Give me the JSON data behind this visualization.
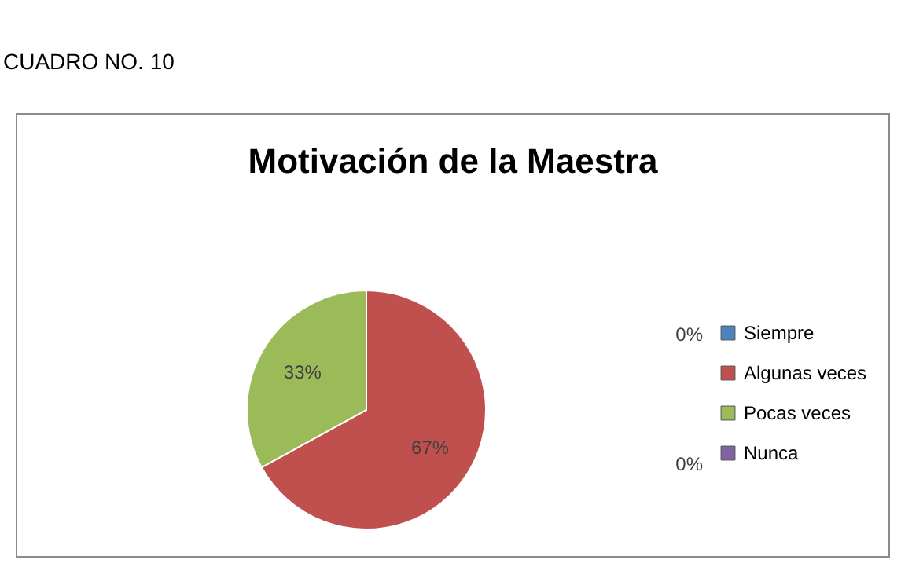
{
  "chart_data": {
    "type": "pie",
    "title": "Motivación de la Maestra",
    "annotations": [
      "CUADRO NO. 10"
    ],
    "categories": [
      "Siempre",
      "Algunas veces",
      "Pocas veces",
      "Nunca"
    ],
    "values": [
      0,
      67,
      33,
      0
    ],
    "colors": [
      "#4f81bd",
      "#c0504d",
      "#9bbb59",
      "#8064a2"
    ],
    "value_labels": [
      "0%",
      "67%",
      "33%",
      "0%"
    ],
    "legend": "right"
  }
}
